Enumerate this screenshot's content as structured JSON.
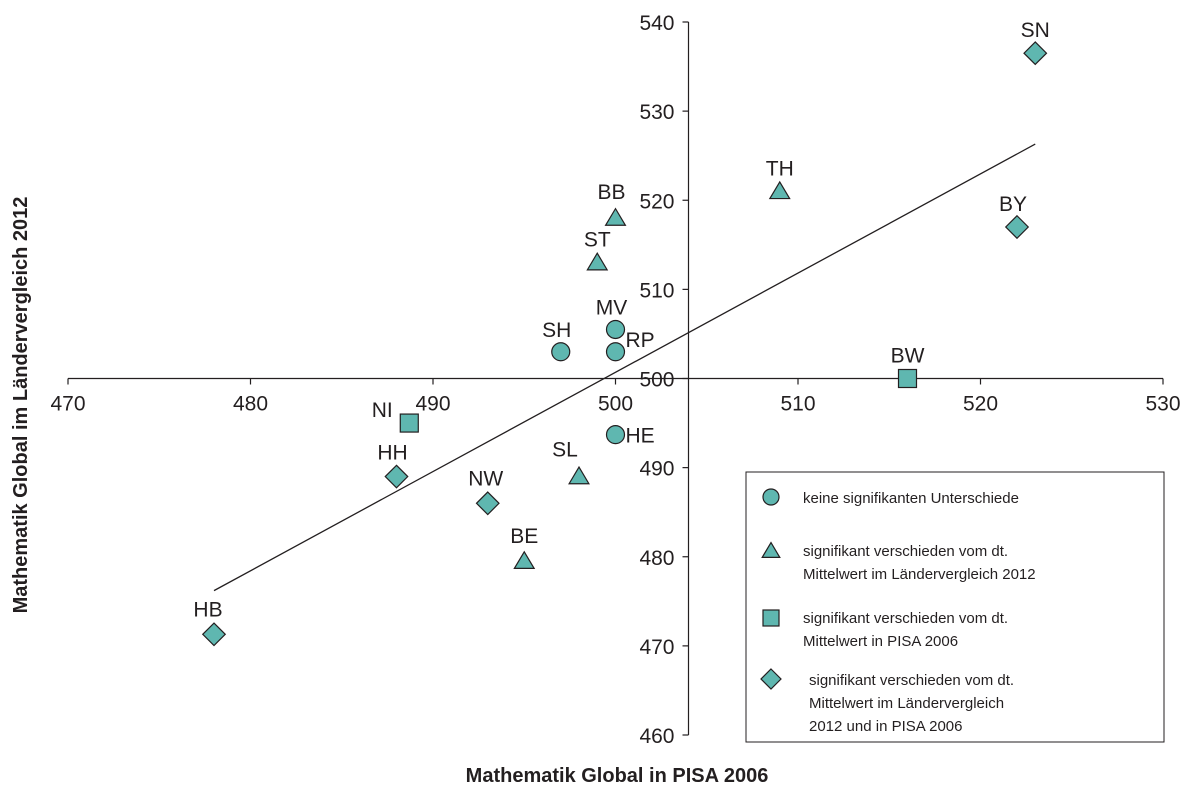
{
  "chart_data": {
    "type": "scatter",
    "xlabel": "Mathematik Global in PISA 2006",
    "ylabel": "Mathematik Global im Ländervergleich 2012",
    "xlim": [
      470,
      530
    ],
    "ylim": [
      460,
      540
    ],
    "x_ticks": [
      470,
      480,
      490,
      500,
      510,
      520,
      530
    ],
    "y_ticks": [
      460,
      470,
      480,
      490,
      500,
      510,
      520,
      530,
      540
    ],
    "axes_cross_at": {
      "x": 504,
      "y": 500
    },
    "grid": false,
    "legend_position": "bottom-right",
    "marker_color": "#5fb7b0",
    "points": [
      {
        "label": "SN",
        "x": 523,
        "y": 536.5,
        "marker": "diamond"
      },
      {
        "label": "TH",
        "x": 509,
        "y": 521,
        "marker": "triangle"
      },
      {
        "label": "BY",
        "x": 522,
        "y": 517,
        "marker": "diamond"
      },
      {
        "label": "BB",
        "x": 500,
        "y": 518,
        "marker": "triangle"
      },
      {
        "label": "ST",
        "x": 499,
        "y": 513,
        "marker": "triangle"
      },
      {
        "label": "MV",
        "x": 500,
        "y": 505.5,
        "marker": "circle"
      },
      {
        "label": "SH",
        "x": 497,
        "y": 503,
        "marker": "circle"
      },
      {
        "label": "RP",
        "x": 500,
        "y": 503,
        "marker": "circle"
      },
      {
        "label": "BW",
        "x": 516,
        "y": 500,
        "marker": "square"
      },
      {
        "label": "NI",
        "x": 488.7,
        "y": 495,
        "marker": "square"
      },
      {
        "label": "HE",
        "x": 500,
        "y": 493.7,
        "marker": "circle"
      },
      {
        "label": "HH",
        "x": 488,
        "y": 489,
        "marker": "diamond"
      },
      {
        "label": "SL",
        "x": 498,
        "y": 489,
        "marker": "triangle"
      },
      {
        "label": "NW",
        "x": 493,
        "y": 486,
        "marker": "diamond"
      },
      {
        "label": "BE",
        "x": 495,
        "y": 479.5,
        "marker": "triangle"
      },
      {
        "label": "HB",
        "x": 478,
        "y": 471.3,
        "marker": "diamond"
      }
    ],
    "trendline": {
      "x": [
        478,
        523
      ],
      "y": [
        476.2,
        526.3
      ]
    },
    "legend": [
      {
        "marker": "circle",
        "lines": [
          "keine signifikanten Unterschiede"
        ]
      },
      {
        "marker": "triangle",
        "lines": [
          "signifikant verschieden vom dt.",
          "Mittelwert im Ländervergleich 2012"
        ]
      },
      {
        "marker": "square",
        "lines": [
          "signifikant verschieden vom dt.",
          "Mittelwert in PISA 2006"
        ]
      },
      {
        "marker": "diamond",
        "lines": [
          "signifikant verschieden vom dt.",
          "Mittelwert im Ländervergleich",
          "2012 und in PISA 2006"
        ]
      }
    ]
  }
}
